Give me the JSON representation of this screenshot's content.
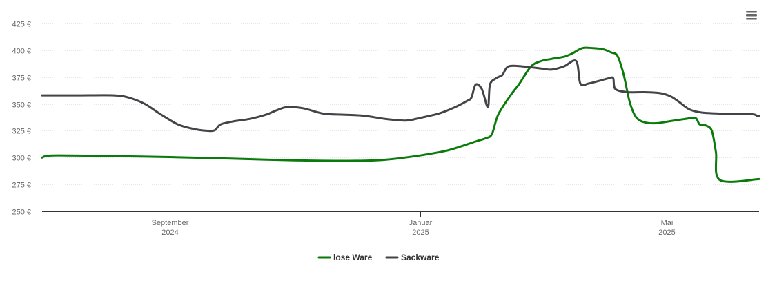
{
  "chart_data": {
    "type": "line",
    "title": "",
    "xlabel": "",
    "ylabel": "",
    "ylim": [
      250,
      425
    ],
    "y_ticks": [
      "250 €",
      "275 €",
      "300 €",
      "325 €",
      "350 €",
      "375 €",
      "400 €",
      "425 €"
    ],
    "y_tick_values": [
      250,
      275,
      300,
      325,
      350,
      375,
      400,
      425
    ],
    "xlim": [
      "2024-07-01",
      "2025-06-15"
    ],
    "x_ticks": [
      {
        "date": "2024-09-01",
        "line1": "September",
        "line2": "2024"
      },
      {
        "date": "2025-01-01",
        "line1": "Januar",
        "line2": "2025"
      },
      {
        "date": "2025-05-01",
        "line1": "Mai",
        "line2": "2025"
      }
    ],
    "grid": true,
    "legend_placement": "bottom-center",
    "series": [
      {
        "name": "lose Ware",
        "color": "#0a7a0a",
        "points": [
          [
            "2024-07-01",
            300
          ],
          [
            "2024-07-06",
            302
          ],
          [
            "2024-08-01",
            301.5
          ],
          [
            "2024-09-01",
            300.5
          ],
          [
            "2024-10-01",
            299
          ],
          [
            "2024-11-01",
            297.5
          ],
          [
            "2024-12-01",
            297
          ],
          [
            "2024-12-15",
            298
          ],
          [
            "2025-01-01",
            302
          ],
          [
            "2025-01-15",
            307
          ],
          [
            "2025-01-28",
            315
          ],
          [
            "2025-02-02",
            318
          ],
          [
            "2025-02-05",
            322
          ],
          [
            "2025-02-08",
            340
          ],
          [
            "2025-02-14",
            358
          ],
          [
            "2025-02-18",
            368
          ],
          [
            "2025-02-24",
            385
          ],
          [
            "2025-03-01",
            390
          ],
          [
            "2025-03-06",
            392
          ],
          [
            "2025-03-12",
            394
          ],
          [
            "2025-03-16",
            397
          ],
          [
            "2025-03-21",
            402
          ],
          [
            "2025-03-26",
            402
          ],
          [
            "2025-03-31",
            401
          ],
          [
            "2025-04-04",
            398
          ],
          [
            "2025-04-07",
            395
          ],
          [
            "2025-04-10",
            378
          ],
          [
            "2025-04-13",
            352
          ],
          [
            "2025-04-16",
            338
          ],
          [
            "2025-04-20",
            333
          ],
          [
            "2025-04-26",
            332
          ],
          [
            "2025-05-03",
            334
          ],
          [
            "2025-05-10",
            336
          ],
          [
            "2025-05-15",
            337
          ],
          [
            "2025-05-17",
            331
          ],
          [
            "2025-05-20",
            330
          ],
          [
            "2025-05-23",
            325
          ],
          [
            "2025-05-25",
            305
          ],
          [
            "2025-05-27",
            279
          ],
          [
            "2025-06-15",
            280
          ]
        ]
      },
      {
        "name": "Sackware",
        "color": "#434348",
        "points": [
          [
            "2024-07-01",
            358
          ],
          [
            "2024-07-20",
            358
          ],
          [
            "2024-08-05",
            358
          ],
          [
            "2024-08-12",
            356
          ],
          [
            "2024-08-20",
            350
          ],
          [
            "2024-08-28",
            340
          ],
          [
            "2024-09-05",
            331
          ],
          [
            "2024-09-12",
            327
          ],
          [
            "2024-09-19",
            325
          ],
          [
            "2024-09-23",
            325.5
          ],
          [
            "2024-09-26",
            331
          ],
          [
            "2024-10-03",
            334
          ],
          [
            "2024-10-10",
            336
          ],
          [
            "2024-10-18",
            340
          ],
          [
            "2024-10-23",
            344
          ],
          [
            "2024-10-28",
            347
          ],
          [
            "2024-11-05",
            346
          ],
          [
            "2024-11-15",
            341
          ],
          [
            "2024-11-25",
            340
          ],
          [
            "2024-12-05",
            339
          ],
          [
            "2024-12-15",
            336
          ],
          [
            "2024-12-25",
            334.5
          ],
          [
            "2025-01-01",
            337
          ],
          [
            "2025-01-10",
            341
          ],
          [
            "2025-01-18",
            347
          ],
          [
            "2025-01-24",
            353
          ],
          [
            "2025-01-26",
            356
          ],
          [
            "2025-01-28",
            368
          ],
          [
            "2025-01-31",
            364
          ],
          [
            "2025-02-03",
            347
          ],
          [
            "2025-02-04",
            368
          ],
          [
            "2025-02-07",
            374
          ],
          [
            "2025-02-10",
            377
          ],
          [
            "2025-02-13",
            385
          ],
          [
            "2025-02-20",
            385
          ],
          [
            "2025-03-01",
            383
          ],
          [
            "2025-03-06",
            382
          ],
          [
            "2025-03-12",
            385
          ],
          [
            "2025-03-18",
            390
          ],
          [
            "2025-03-20",
            369
          ],
          [
            "2025-03-24",
            369
          ],
          [
            "2025-03-30",
            372
          ],
          [
            "2025-04-03",
            374
          ],
          [
            "2025-04-05",
            374
          ],
          [
            "2025-04-06",
            364
          ],
          [
            "2025-04-12",
            361
          ],
          [
            "2025-04-20",
            361
          ],
          [
            "2025-04-28",
            360
          ],
          [
            "2025-05-03",
            357
          ],
          [
            "2025-05-07",
            352
          ],
          [
            "2025-05-12",
            345
          ],
          [
            "2025-05-18",
            342
          ],
          [
            "2025-05-28",
            341
          ],
          [
            "2025-06-10",
            340.5
          ],
          [
            "2025-06-13",
            340
          ],
          [
            "2025-06-14",
            339
          ],
          [
            "2025-06-15",
            339
          ]
        ]
      }
    ]
  },
  "menu": {
    "icon": "hamburger-menu-icon"
  }
}
